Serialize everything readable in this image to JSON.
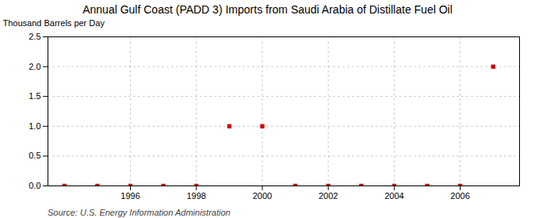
{
  "chart_data": {
    "type": "scatter",
    "title": "Annual Gulf Coast (PADD 3) Imports from Saudi Arabia of Distillate Fuel Oil",
    "ylabel": "Thousand Barrels per Day",
    "source": "Source: U.S. Energy Information Administration",
    "x": [
      1994,
      1995,
      1996,
      1997,
      1998,
      1999,
      2000,
      2001,
      2002,
      2003,
      2004,
      2005,
      2006,
      2007
    ],
    "values": [
      0.0,
      0.0,
      0.0,
      0.0,
      0.0,
      1.0,
      1.0,
      0.0,
      0.0,
      0.0,
      0.0,
      0.0,
      0.0,
      2.0
    ],
    "color": "#CC0000",
    "marker": "square",
    "xlim": [
      1993.5,
      2007.8
    ],
    "ylim": [
      0.0,
      2.5
    ],
    "xticks": [
      1996,
      1998,
      2000,
      2002,
      2004,
      2006
    ],
    "yticks": [
      {
        "value": 0,
        "label": "0.0"
      },
      0.5,
      {
        "value": 1,
        "label": "1.0"
      },
      1.5,
      {
        "value": 2,
        "label": "2.0"
      },
      2.5
    ],
    "grid": true
  }
}
